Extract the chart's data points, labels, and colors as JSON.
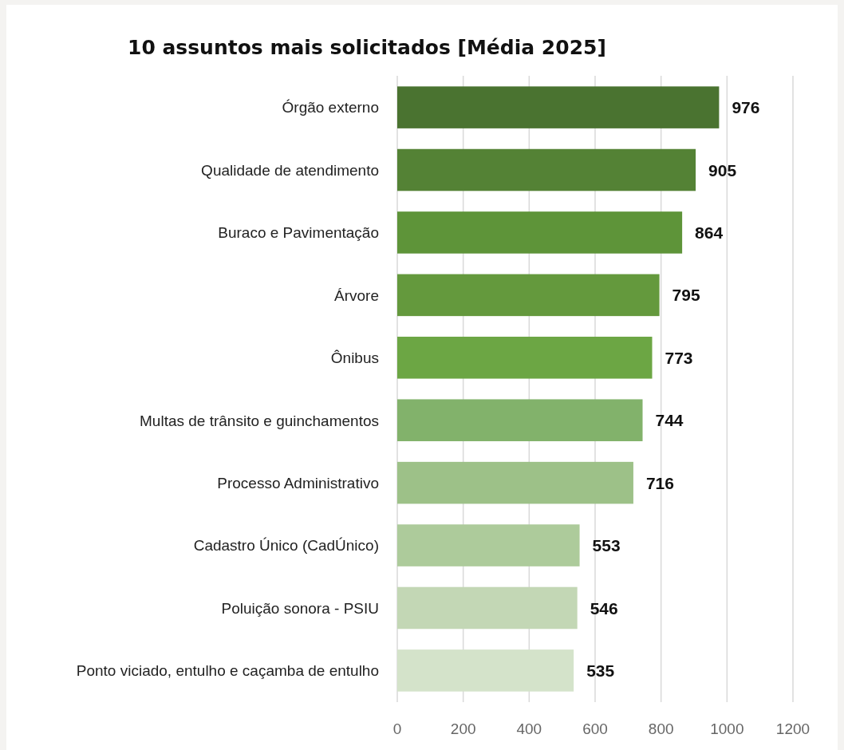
{
  "chart_data": {
    "type": "bar",
    "orientation": "horizontal",
    "title": "10 assuntos mais solicitados [Média 2025]",
    "categories": [
      "Órgão externo",
      "Qualidade de atendimento",
      "Buraco e Pavimentação",
      "Árvore",
      "Ônibus",
      "Multas de trânsito e guinchamentos",
      "Processo Administrativo",
      "Cadastro Único (CadÚnico)",
      "Poluição sonora - PSIU",
      "Ponto viciado, entulho e caçamba de entulho"
    ],
    "values": [
      976,
      905,
      864,
      795,
      773,
      744,
      716,
      553,
      546,
      535
    ],
    "colors": [
      "#4a7330",
      "#548235",
      "#5e9439",
      "#64993d",
      "#6ca644",
      "#82b26b",
      "#9dc188",
      "#adcb9b",
      "#c3d7b5",
      "#d4e3ca"
    ],
    "xlim": [
      0,
      1200
    ],
    "xticks": [
      0,
      200,
      400,
      600,
      800,
      1000,
      1200
    ],
    "grid": "x",
    "data_labels": true
  }
}
